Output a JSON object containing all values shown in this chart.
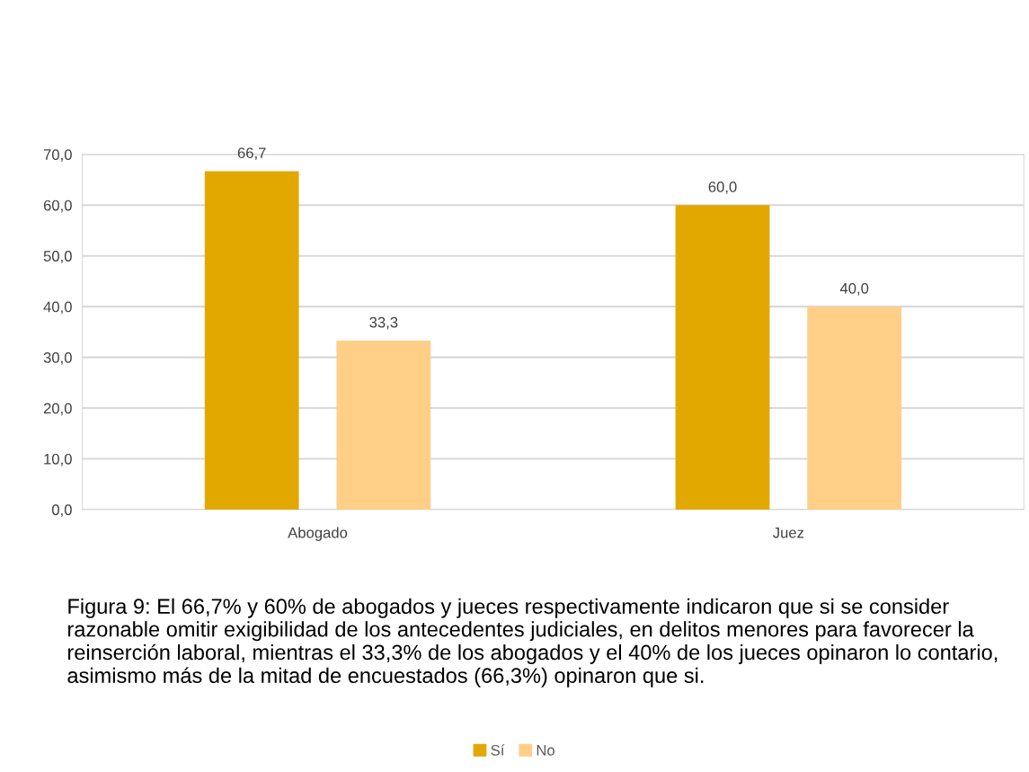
{
  "chart_data": {
    "type": "bar",
    "categories": [
      "Abogado",
      "Juez"
    ],
    "series": [
      {
        "name": "Sí",
        "color": "#e2a800",
        "values": [
          66.7,
          60.0
        ],
        "value_labels": [
          "66,7",
          "60,0"
        ]
      },
      {
        "name": "No",
        "color": "#ffcf88",
        "values": [
          33.3,
          40.0
        ],
        "value_labels": [
          "33,3",
          "40,0"
        ]
      }
    ],
    "ylim": [
      0,
      70
    ],
    "yticks": [
      {
        "value": 0,
        "label": "0,0"
      },
      {
        "value": 10,
        "label": "10,0"
      },
      {
        "value": 20,
        "label": "20,0"
      },
      {
        "value": 30,
        "label": "30,0"
      },
      {
        "value": 40,
        "label": "40,0"
      },
      {
        "value": 50,
        "label": "50,0"
      },
      {
        "value": 60,
        "label": "60,0"
      },
      {
        "value": 70,
        "label": "70,0"
      }
    ],
    "grid": "y",
    "legend": "bottom",
    "annotations": [
      "Figura 9: El 66,7% y 60% de abogados y jueces respectivamente indicaron que si se consider razonable omitir exigibilidad de los antecedentes judiciales, en delitos menores para favorecer la reinserción laboral, mientras el 33,3% de los abogados y el 40% de los jueces opinaron lo contario, asimismo más de la mitad de encuestados (66,3%) opinaron que si."
    ]
  }
}
